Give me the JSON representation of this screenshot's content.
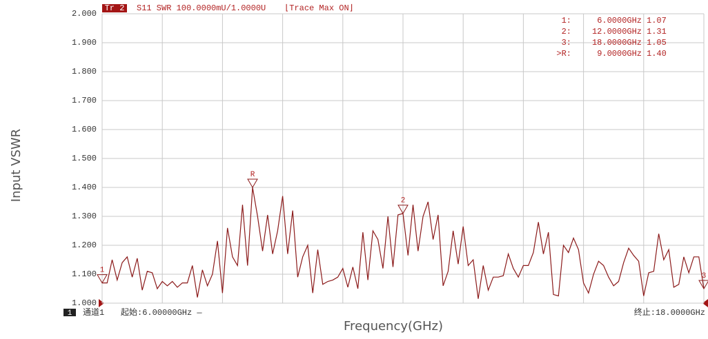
{
  "chart_data": {
    "type": "line",
    "trace": "Tr 2",
    "subtitle": "S11 SWR 100.0000mU/1.0000U",
    "annotation": "⌊Trace Max ON⌋",
    "ylabel": "Input VSWR",
    "xlabel": "Frequency(GHz)",
    "channel_box": "1",
    "channel": "通道1",
    "start": "起始:6.00000GHz —",
    "stop": "终止:18.0000GHz",
    "xlim": [
      6,
      18
    ],
    "xdivisions": 10,
    "ylim": [
      1,
      2
    ],
    "yticks": [
      {
        "value": 2,
        "label": "2.000"
      },
      {
        "value": 1.9,
        "label": "1.900"
      },
      {
        "value": 1.8,
        "label": "1.800"
      },
      {
        "value": 1.7,
        "label": "1.700"
      },
      {
        "value": 1.6,
        "label": "1.600"
      },
      {
        "value": 1.5,
        "label": "1.500"
      },
      {
        "value": 1.4,
        "label": "1.400"
      },
      {
        "value": 1.3,
        "label": "1.300"
      },
      {
        "value": 1.2,
        "label": "1.200"
      },
      {
        "value": 1.1,
        "label": "1.100"
      },
      {
        "value": 1,
        "label": "1.000"
      }
    ],
    "grid": true,
    "color": "#8b1a1a",
    "x": [
      6.0,
      6.1,
      6.2,
      6.3,
      6.4,
      6.5,
      6.6,
      6.7,
      6.8,
      6.9,
      7.0,
      7.1,
      7.2,
      7.3,
      7.4,
      7.5,
      7.6,
      7.7,
      7.8,
      7.9,
      8.0,
      8.1,
      8.2,
      8.3,
      8.4,
      8.5,
      8.6,
      8.7,
      8.8,
      8.9,
      9.0,
      9.1,
      9.2,
      9.3,
      9.4,
      9.5,
      9.6,
      9.7,
      9.8,
      9.9,
      10.0,
      10.1,
      10.2,
      10.3,
      10.4,
      10.5,
      10.6,
      10.7,
      10.8,
      10.9,
      11.0,
      11.1,
      11.2,
      11.3,
      11.4,
      11.5,
      11.6,
      11.7,
      11.8,
      11.9,
      12.0,
      12.1,
      12.2,
      12.3,
      12.4,
      12.5,
      12.6,
      12.7,
      12.8,
      12.9,
      13.0,
      13.1,
      13.2,
      13.3,
      13.4,
      13.5,
      13.6,
      13.7,
      13.8,
      13.9,
      14.0,
      14.1,
      14.2,
      14.3,
      14.4,
      14.5,
      14.6,
      14.7,
      14.8,
      14.9,
      15.0,
      15.1,
      15.2,
      15.3,
      15.4,
      15.5,
      15.6,
      15.7,
      15.8,
      15.9,
      16.0,
      16.1,
      16.2,
      16.3,
      16.4,
      16.5,
      16.6,
      16.7,
      16.8,
      16.9,
      17.0,
      17.1,
      17.2,
      17.3,
      17.4,
      17.5,
      17.6,
      17.7,
      17.8,
      17.9,
      18.0
    ],
    "values": [
      1.07,
      1.07,
      1.15,
      1.08,
      1.14,
      1.16,
      1.09,
      1.155,
      1.045,
      1.11,
      1.105,
      1.05,
      1.075,
      1.06,
      1.075,
      1.055,
      1.07,
      1.07,
      1.13,
      1.02,
      1.115,
      1.06,
      1.1,
      1.215,
      1.035,
      1.26,
      1.16,
      1.13,
      1.34,
      1.13,
      1.4,
      1.3,
      1.18,
      1.305,
      1.17,
      1.25,
      1.37,
      1.17,
      1.32,
      1.09,
      1.16,
      1.2,
      1.035,
      1.185,
      1.065,
      1.075,
      1.08,
      1.09,
      1.12,
      1.055,
      1.125,
      1.05,
      1.245,
      1.08,
      1.25,
      1.22,
      1.12,
      1.3,
      1.125,
      1.305,
      1.31,
      1.165,
      1.34,
      1.18,
      1.3,
      1.35,
      1.22,
      1.305,
      1.06,
      1.11,
      1.25,
      1.135,
      1.265,
      1.13,
      1.15,
      1.015,
      1.13,
      1.045,
      1.09,
      1.09,
      1.095,
      1.17,
      1.12,
      1.09,
      1.13,
      1.13,
      1.175,
      1.28,
      1.17,
      1.245,
      1.03,
      1.025,
      1.2,
      1.175,
      1.225,
      1.185,
      1.07,
      1.035,
      1.1,
      1.145,
      1.13,
      1.09,
      1.06,
      1.075,
      1.14,
      1.19,
      1.165,
      1.145,
      1.025,
      1.105,
      1.11,
      1.24,
      1.15,
      1.185,
      1.055,
      1.065,
      1.16,
      1.105,
      1.16,
      1.16,
      1.05
    ],
    "markers": [
      {
        "name": "1:",
        "symbol": "1",
        "x": 6,
        "x_label": "6.0000GHz",
        "value": 1.07
      },
      {
        "name": "2:",
        "symbol": "2",
        "x": 12,
        "x_label": "12.0000GHz",
        "value": 1.31
      },
      {
        "name": "3:",
        "symbol": "3",
        "x": 18,
        "x_label": "18.0000GHz",
        "value": 1.05
      },
      {
        "name": ">R:",
        "symbol": "R",
        "x": 9,
        "x_label": "9.0000GHz",
        "value": 1.4,
        "value_label": "1.40"
      }
    ]
  }
}
